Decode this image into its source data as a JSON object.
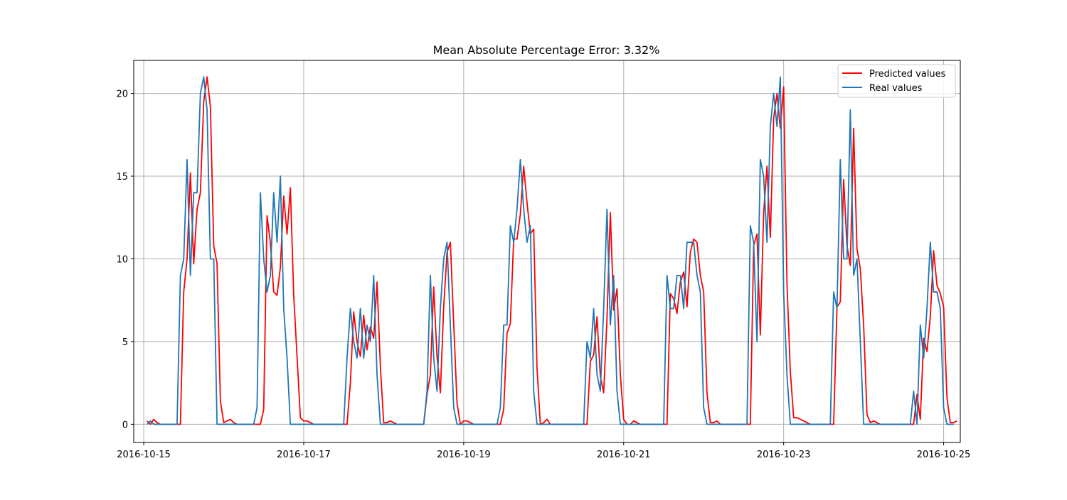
{
  "chart_data": {
    "type": "line",
    "title": "Mean Absolute Percentage Error: 3.32%",
    "xlabel": "",
    "ylabel": "",
    "x_unit": "hours",
    "x_start": "2016-10-15T01:00",
    "x_step_hours": 1,
    "xlim": [
      "2016-10-14T21:00",
      "2016-10-25T05:00"
    ],
    "ylim": [
      -1.1,
      22.0
    ],
    "grid": true,
    "legend_position": "top-right",
    "x_ticks": [
      "2016-10-15",
      "2016-10-17",
      "2016-10-19",
      "2016-10-21",
      "2016-10-23",
      "2016-10-25"
    ],
    "y_ticks": [
      0,
      5,
      10,
      15,
      20
    ],
    "series": [
      {
        "name": "Predicted values",
        "color": "#ff0000",
        "values": [
          0.2,
          0,
          0.3,
          0.1,
          0,
          0,
          0,
          0,
          0,
          0,
          0,
          8,
          10,
          15.2,
          9.7,
          13,
          14,
          19.5,
          21,
          19.2,
          10.8,
          9.7,
          1.4,
          0.1,
          0.2,
          0.3,
          0.1,
          0,
          0,
          0,
          0,
          0,
          0,
          0,
          0,
          0.9,
          12.6,
          11,
          8,
          7.8,
          9.5,
          13.8,
          11.5,
          14.3,
          7.8,
          4.1,
          0.4,
          0.2,
          0.2,
          0.1,
          0,
          0,
          0,
          0,
          0,
          0,
          0,
          0,
          0,
          0,
          0,
          2.5,
          6.8,
          5,
          4.1,
          6.6,
          4.5,
          5.9,
          5.2,
          8.6,
          3.5,
          0.1,
          0.1,
          0.2,
          0.1,
          0,
          0,
          0,
          0,
          0,
          0,
          0,
          0,
          0,
          1.8,
          3,
          8.3,
          4.1,
          1.9,
          7.1,
          10.4,
          11,
          6.1,
          1.3,
          0,
          0.2,
          0.2,
          0.1,
          0,
          0,
          0,
          0,
          0,
          0,
          0,
          0,
          0,
          0.9,
          5.5,
          6.1,
          11.2,
          11.2,
          12.7,
          15.6,
          13.4,
          11.5,
          11.8,
          3.4,
          0,
          0.1,
          0.3,
          0,
          0,
          0,
          0,
          0,
          0,
          0,
          0,
          0,
          0,
          0,
          0,
          3.8,
          4.2,
          6.5,
          2.9,
          1.9,
          6.4,
          12.8,
          6.9,
          8.2,
          3,
          0.3,
          0,
          0,
          0.2,
          0.1,
          0,
          0,
          0,
          0,
          0,
          0,
          0,
          0,
          0,
          7.9,
          7.6,
          6.7,
          8.6,
          9.2,
          7.1,
          10.4,
          11.2,
          11,
          9,
          8,
          1.9,
          0.1,
          0.1,
          0.2,
          0,
          0,
          0,
          0,
          0,
          0,
          0,
          0,
          0,
          0,
          10.8,
          11.5,
          5.4,
          12.8,
          15.6,
          11.3,
          18.5,
          20,
          17.9,
          20.4,
          8.5,
          3.2,
          0.4,
          0.4,
          0.3,
          0.2,
          0.1,
          0,
          0,
          0,
          0,
          0,
          0,
          0,
          0,
          7.1,
          7.4,
          14.8,
          10.8,
          9.6,
          17.9,
          10.6,
          9.4,
          6,
          0.6,
          0.1,
          0.2,
          0.1,
          0,
          0,
          0,
          0,
          0,
          0,
          0,
          0,
          0,
          0,
          0,
          1.8,
          0.3,
          5.2,
          4.4,
          6.5,
          10.5,
          8.4,
          7.9,
          7.1,
          1.6,
          0.1,
          0.1,
          0.2
        ]
      },
      {
        "name": "Real values",
        "color": "#1f77b4",
        "values": [
          0,
          0.2,
          0,
          0,
          0,
          0,
          0,
          0,
          0,
          0,
          9,
          10,
          16,
          9,
          14,
          14,
          20,
          21,
          19,
          10,
          10,
          0,
          0,
          0,
          0,
          0,
          0,
          0,
          0,
          0,
          0,
          0,
          0,
          1,
          14,
          10,
          8,
          9,
          14,
          11,
          15,
          7,
          4,
          0,
          0,
          0,
          0,
          0,
          0,
          0,
          0,
          0,
          0,
          0,
          0,
          0,
          0,
          0,
          0,
          0,
          4,
          7,
          5,
          4,
          7,
          4,
          6,
          5,
          9,
          3,
          0,
          0,
          0,
          0,
          0,
          0,
          0,
          0,
          0,
          0,
          0,
          0,
          0,
          0,
          2,
          9,
          4,
          2,
          7,
          10,
          11,
          6,
          1,
          0,
          0,
          0,
          0,
          0,
          0,
          0,
          0,
          0,
          0,
          0,
          0,
          0,
          1,
          6,
          6,
          12,
          11,
          13,
          16,
          13,
          11,
          12,
          2,
          0,
          0,
          0,
          0,
          0,
          0,
          0,
          0,
          0,
          0,
          0,
          0,
          0,
          0,
          0,
          5,
          4,
          7,
          3,
          2,
          7,
          13,
          6,
          9,
          2,
          0,
          0,
          0,
          0,
          0,
          0,
          0,
          0,
          0,
          0,
          0,
          0,
          0,
          0,
          9,
          7,
          7,
          9,
          9,
          7,
          11,
          11,
          11,
          9,
          8,
          1,
          0,
          0,
          0,
          0,
          0,
          0,
          0,
          0,
          0,
          0,
          0,
          0,
          0,
          12,
          11,
          5,
          16,
          15,
          11,
          18,
          20,
          18,
          21,
          8,
          3,
          0,
          0,
          0,
          0,
          0,
          0,
          0,
          0,
          0,
          0,
          0,
          0,
          0,
          8,
          7,
          16,
          10,
          10,
          19,
          9,
          10,
          5,
          0,
          0,
          0,
          0,
          0,
          0,
          0,
          0,
          0,
          0,
          0,
          0,
          0,
          0,
          0,
          2,
          0,
          6,
          4,
          7,
          11,
          8,
          8,
          7,
          1,
          0,
          0,
          0
        ]
      }
    ]
  }
}
